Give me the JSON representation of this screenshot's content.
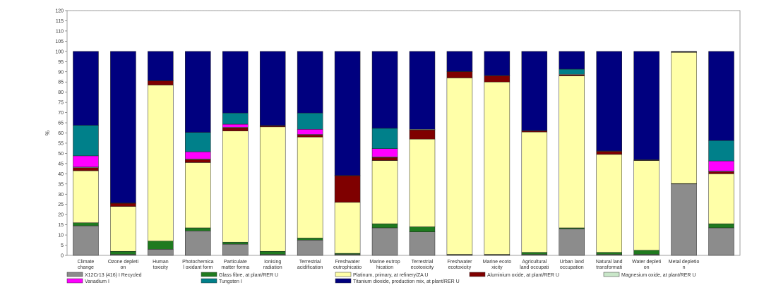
{
  "chart_data": {
    "type": "bar",
    "stacked": true,
    "title": "",
    "xlabel": "",
    "ylabel": "%",
    "ylim": [
      0,
      120
    ],
    "yticks": [
      0,
      5,
      10,
      15,
      20,
      25,
      30,
      35,
      40,
      45,
      50,
      55,
      60,
      65,
      70,
      75,
      80,
      85,
      90,
      95,
      100,
      105,
      110,
      115,
      120
    ],
    "grid": true,
    "legend_position": "bottom",
    "categories": [
      [
        "Climate",
        "change"
      ],
      [
        "Ozone depleti",
        "on"
      ],
      [
        "Human",
        "toxicity"
      ],
      [
        "Photochemica",
        "l oxidant form"
      ],
      [
        "Particulate",
        "matter forma"
      ],
      [
        "Ionising",
        "radiation"
      ],
      [
        "Terrestrial",
        "acidification"
      ],
      [
        "Freshwater",
        "eutrophicatio"
      ],
      [
        "Marine eutrop",
        "hication"
      ],
      [
        "Terrestrial",
        "ecotoxicity"
      ],
      [
        "Freshwater",
        "ecotoxicity"
      ],
      [
        "Marine ecoto",
        "xicity"
      ],
      [
        "Agricultural",
        "land occupati"
      ],
      [
        "Urban land",
        "occupation"
      ],
      [
        "Natural land",
        "transformati"
      ],
      [
        "Water depleti",
        "on"
      ],
      [
        "Metal depletio",
        "n"
      ],
      [
        ""
      ]
    ],
    "series": [
      {
        "name": "X12Cr13 (416) I Recycled",
        "color": "#8c8c8c",
        "values": [
          14.5,
          0.5,
          3,
          12,
          5.5,
          0.5,
          7.5,
          0.5,
          13.5,
          11.5,
          0.3,
          0.3,
          0.5,
          13,
          0.5,
          0.5,
          35,
          13.5
        ]
      },
      {
        "name": "Glass fibre, at plant/RER U",
        "color": "#1f7a1f",
        "values": [
          1.5,
          1.5,
          4,
          1.5,
          1,
          1.5,
          1,
          0.5,
          2,
          2.5,
          0.2,
          0.2,
          1,
          0.5,
          1,
          2,
          0.2,
          2
        ]
      },
      {
        "name": "Platinum, primary, at refinery/ZA U",
        "color": "#ffffa8",
        "values": [
          25.5,
          22,
          76.5,
          32,
          54.5,
          61,
          49.5,
          25,
          31,
          43,
          86.5,
          84.5,
          59,
          74.5,
          48,
          44,
          64.3,
          24.5
        ]
      },
      {
        "name": "Aluminium oxide, at plant/RER U",
        "color": "#7f0000",
        "values": [
          1.5,
          1.5,
          2,
          1.5,
          1.5,
          0.5,
          1,
          13,
          1.5,
          4.5,
          3,
          3,
          0.5,
          0.5,
          1.5,
          0.2,
          0.2,
          1
        ]
      },
      {
        "name": "Magnesium oxide, at plant/RER U",
        "color": "#c8e6c8",
        "values": [
          0.3,
          0.2,
          0.2,
          0.3,
          0.3,
          0.2,
          0.3,
          0.2,
          0.3,
          0.3,
          0.2,
          0.2,
          0.2,
          0.3,
          0.2,
          0.2,
          0.1,
          0.3
        ]
      },
      {
        "name": "Vanadium I",
        "color": "#ff00ff",
        "values": [
          5.5,
          0,
          0,
          3.5,
          1.5,
          0,
          2.5,
          0,
          4,
          0,
          0,
          0,
          0,
          0,
          0,
          0,
          0,
          5
        ]
      },
      {
        "name": "Tungsten I",
        "color": "#00808a",
        "values": [
          15,
          0,
          0,
          9.5,
          5.5,
          0,
          8,
          0,
          10,
          0,
          0,
          0,
          0,
          2.5,
          0,
          0,
          0,
          10
        ]
      },
      {
        "name": "Titanium dioxide, production mix, at plant/RER U",
        "color": "#00007f",
        "values": [
          36.2,
          74.3,
          14.3,
          39.7,
          30.2,
          36.3,
          30.2,
          60.8,
          37.7,
          38.2,
          9.8,
          11.8,
          38.8,
          8.7,
          48.8,
          53.1,
          0.2,
          43.7
        ]
      }
    ],
    "legend_rows": [
      [
        "X12Cr13 (416) I Recycled",
        "Glass fibre, at plant/RER U",
        "Platinum, primary, at refinery/ZA U",
        "Aluminium oxide, at plant/RER U",
        "Magnesium oxide, at plant/RER U"
      ],
      [
        "Vanadium I",
        "Tungsten I",
        "Titanium dioxide, production mix, at plant/RER U"
      ]
    ]
  }
}
